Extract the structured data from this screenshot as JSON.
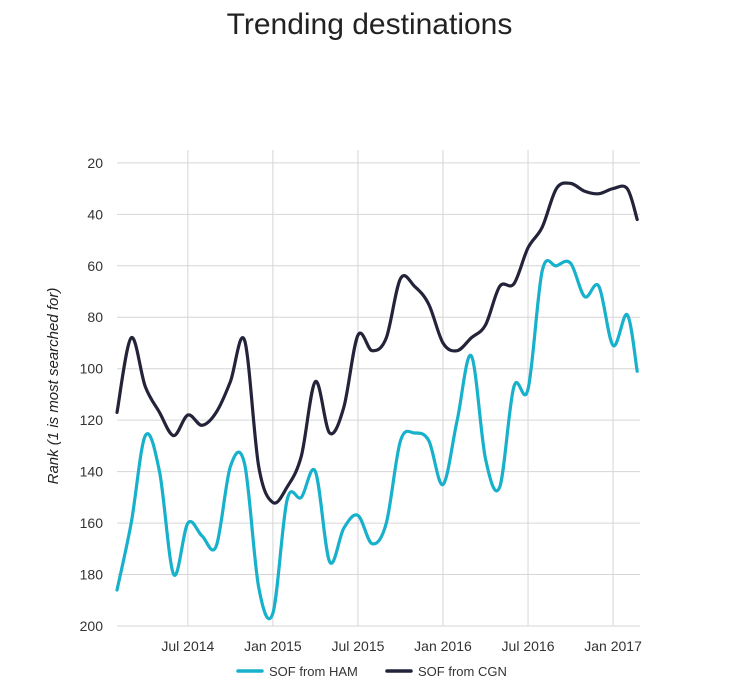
{
  "chart_data": {
    "type": "line",
    "title": "Trending destinations",
    "xlabel": "",
    "ylabel": "Rank (1 is most searched for)",
    "ylim": [
      200,
      15
    ],
    "y_inverted": true,
    "yticks": [
      20,
      40,
      60,
      80,
      100,
      120,
      140,
      160,
      180,
      200
    ],
    "xrange": [
      "2014-02",
      "2017-03"
    ],
    "xticks": [
      {
        "label": "Jul 2014",
        "t": 5
      },
      {
        "label": "Jan 2015",
        "t": 11
      },
      {
        "label": "Jul 2015",
        "t": 17
      },
      {
        "label": "Jan 2016",
        "t": 23
      },
      {
        "label": "Jul 2016",
        "t": 29
      },
      {
        "label": "Jan 2017",
        "t": 35
      }
    ],
    "x_unit": "months since Feb 2014",
    "legend_position": "bottom-center",
    "series": [
      {
        "name": "SOF from HAM",
        "color": "#17b1cc",
        "points": [
          [
            0,
            186
          ],
          [
            1,
            160
          ],
          [
            2,
            126
          ],
          [
            3,
            140
          ],
          [
            4,
            180
          ],
          [
            5,
            160
          ],
          [
            6,
            165
          ],
          [
            7,
            169
          ],
          [
            8,
            138
          ],
          [
            9,
            137
          ],
          [
            10,
            185
          ],
          [
            11,
            195
          ],
          [
            12,
            151
          ],
          [
            13,
            150
          ],
          [
            14,
            140
          ],
          [
            15,
            175
          ],
          [
            16,
            162
          ],
          [
            17,
            157
          ],
          [
            18,
            168
          ],
          [
            19,
            160
          ],
          [
            20,
            128
          ],
          [
            21,
            125
          ],
          [
            22,
            128
          ],
          [
            23,
            145
          ],
          [
            24,
            120
          ],
          [
            25,
            95
          ],
          [
            26,
            135
          ],
          [
            27,
            146
          ],
          [
            28,
            107
          ],
          [
            29,
            108
          ],
          [
            30,
            62
          ],
          [
            31,
            60
          ],
          [
            32,
            59
          ],
          [
            33,
            72
          ],
          [
            34,
            68
          ],
          [
            35,
            91
          ],
          [
            36,
            79
          ],
          [
            36.7,
            101
          ]
        ]
      },
      {
        "name": "SOF from CGN",
        "color": "#23233a",
        "points": [
          [
            0,
            117
          ],
          [
            1,
            88
          ],
          [
            2,
            107
          ],
          [
            3,
            117
          ],
          [
            4,
            126
          ],
          [
            5,
            118
          ],
          [
            6,
            122
          ],
          [
            7,
            117
          ],
          [
            8,
            105
          ],
          [
            9,
            89
          ],
          [
            10,
            138
          ],
          [
            11,
            152
          ],
          [
            12,
            146
          ],
          [
            13,
            134
          ],
          [
            14,
            105
          ],
          [
            15,
            125
          ],
          [
            16,
            115
          ],
          [
            17,
            87
          ],
          [
            18,
            93
          ],
          [
            19,
            88
          ],
          [
            20,
            65
          ],
          [
            21,
            68
          ],
          [
            22,
            75
          ],
          [
            23,
            90
          ],
          [
            24,
            93
          ],
          [
            25,
            88
          ],
          [
            26,
            83
          ],
          [
            27,
            68
          ],
          [
            28,
            67
          ],
          [
            29,
            53
          ],
          [
            30,
            45
          ],
          [
            31,
            30
          ],
          [
            32,
            28
          ],
          [
            33,
            31
          ],
          [
            34,
            32
          ],
          [
            35,
            30
          ],
          [
            36,
            30
          ],
          [
            36.7,
            42
          ]
        ]
      }
    ]
  }
}
